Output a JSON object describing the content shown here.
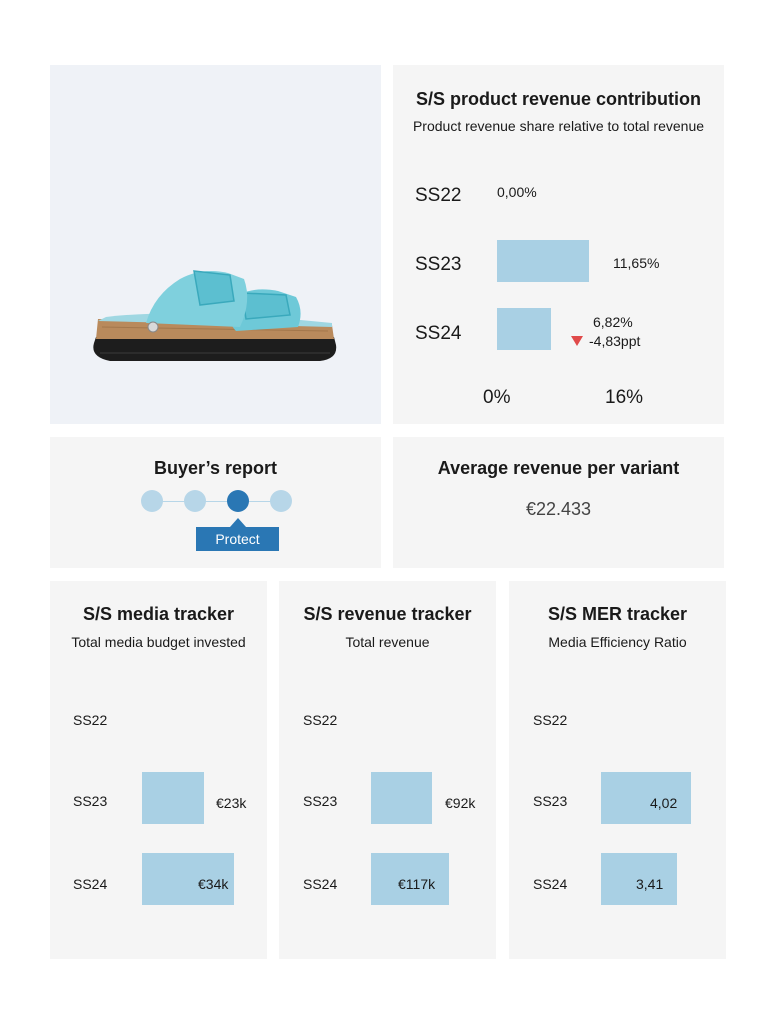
{
  "product": {
    "image_icon": "turquoise-two-strap-sandal"
  },
  "revenue_contribution": {
    "title": "S/S product revenue contribution",
    "subtitle": "Product revenue share relative to total revenue",
    "rows": [
      {
        "season": "SS22",
        "value_label": "0,00%",
        "value": 0.0
      },
      {
        "season": "SS23",
        "value_label": "11,65%",
        "value": 11.65
      },
      {
        "season": "SS24",
        "value_label": "6,82%",
        "value": 6.82,
        "delta_label": "-4,83ppt"
      }
    ],
    "axis": {
      "min_label": "0%",
      "max_label": "16%"
    }
  },
  "buyers_report": {
    "title": "Buyer’s report",
    "steps": 4,
    "active_step": 3,
    "badge_label": "Protect"
  },
  "avg_revenue": {
    "title": "Average revenue per variant",
    "value": "€22.433"
  },
  "media_tracker": {
    "title": "S/S media tracker",
    "subtitle": "Total media budget invested",
    "rows": [
      {
        "season": "SS22",
        "value_label": "",
        "value": 0
      },
      {
        "season": "SS23",
        "value_label": "€23k",
        "value": 23
      },
      {
        "season": "SS24",
        "value_label": "€34k",
        "value": 34
      }
    ]
  },
  "revenue_tracker": {
    "title": "S/S revenue tracker",
    "subtitle": "Total revenue",
    "rows": [
      {
        "season": "SS22",
        "value_label": "",
        "value": 0
      },
      {
        "season": "SS23",
        "value_label": "€92k",
        "value": 92
      },
      {
        "season": "SS24",
        "value_label": "€117k",
        "value": 117
      }
    ]
  },
  "mer_tracker": {
    "title": "S/S MER tracker",
    "subtitle": "Media Efficiency Ratio",
    "rows": [
      {
        "season": "SS22",
        "value_label": "",
        "value": 0
      },
      {
        "season": "SS23",
        "value_label": "4,02",
        "value": 4.02
      },
      {
        "season": "SS24",
        "value_label": "3,41",
        "value": 3.41
      }
    ]
  },
  "colors": {
    "bar": "#a9d0e4",
    "card_bg": "#f5f5f5",
    "accent_blue": "#2a77b4",
    "negative": "#e04a4a"
  }
}
